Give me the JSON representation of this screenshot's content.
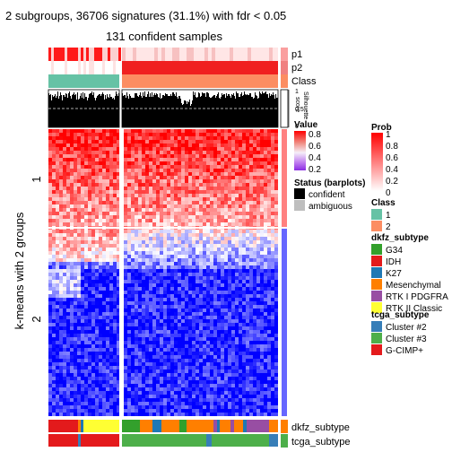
{
  "chart_data": {
    "type": "heatmap",
    "title": "2 subgroups, 36706 signatures (31.1%) with fdr < 0.05",
    "subtitle": "131 confident samples",
    "row_axis_label": "k-means with 2 groups",
    "row_groups": [
      "1",
      "2"
    ],
    "column_groups": [
      "1",
      "2"
    ],
    "track_labels": {
      "p1": "p1",
      "p2": "p2",
      "class": "Class",
      "dkfz": "dkfz_subtype",
      "tcga": "tcga_subtype"
    },
    "silhouette_axis": {
      "label": "Silhouette\nscore",
      "ticks": [
        "1",
        "0.5",
        "0"
      ],
      "cutoff": 0.5
    },
    "colors": {
      "high": "#ff0000",
      "mid": "#ffffff",
      "low": "#0000ff",
      "class1": "#66c2a5",
      "class2": "#fc8d62",
      "confident": "#000000",
      "ambiguous": "#bebebe"
    },
    "legends": {
      "value": {
        "title": "Value",
        "ticks": [
          "0.8",
          "0.6",
          "0.4",
          "0.2"
        ],
        "colors": [
          "#ff0000",
          "#f08080",
          "#ffffff",
          "#b070ff",
          "#8000ff"
        ]
      },
      "status": {
        "title": "Status (barplots)",
        "items": [
          {
            "label": "confident",
            "color": "#000000"
          },
          {
            "label": "ambiguous",
            "color": "#bebebe"
          }
        ]
      },
      "prob": {
        "title": "Prob",
        "ticks": [
          "1",
          "0.8",
          "0.6",
          "0.4",
          "0.2",
          "0"
        ]
      },
      "class": {
        "title": "Class",
        "items": [
          {
            "label": "1",
            "color": "#66c2a5"
          },
          {
            "label": "2",
            "color": "#fc8d62"
          }
        ]
      },
      "dkfz_subtype": {
        "title": "dkfz_subtype",
        "items": [
          {
            "label": "G34",
            "color": "#33a02c"
          },
          {
            "label": "IDH",
            "color": "#e31a1c"
          },
          {
            "label": "K27",
            "color": "#1f78b4"
          },
          {
            "label": "Mesenchymal",
            "color": "#ff7f00"
          },
          {
            "label": "RTK I PDGFRA",
            "color": "#984ea3"
          },
          {
            "label": "RTK II Classic",
            "color": "#ffff33"
          }
        ]
      },
      "tcga_subtype": {
        "title": "tcga_subtype",
        "items": [
          {
            "label": "Cluster #2",
            "color": "#377eb8"
          },
          {
            "label": "Cluster #3",
            "color": "#4daf4a"
          },
          {
            "label": "G-CIMP+",
            "color": "#e41a1c"
          }
        ]
      }
    }
  }
}
